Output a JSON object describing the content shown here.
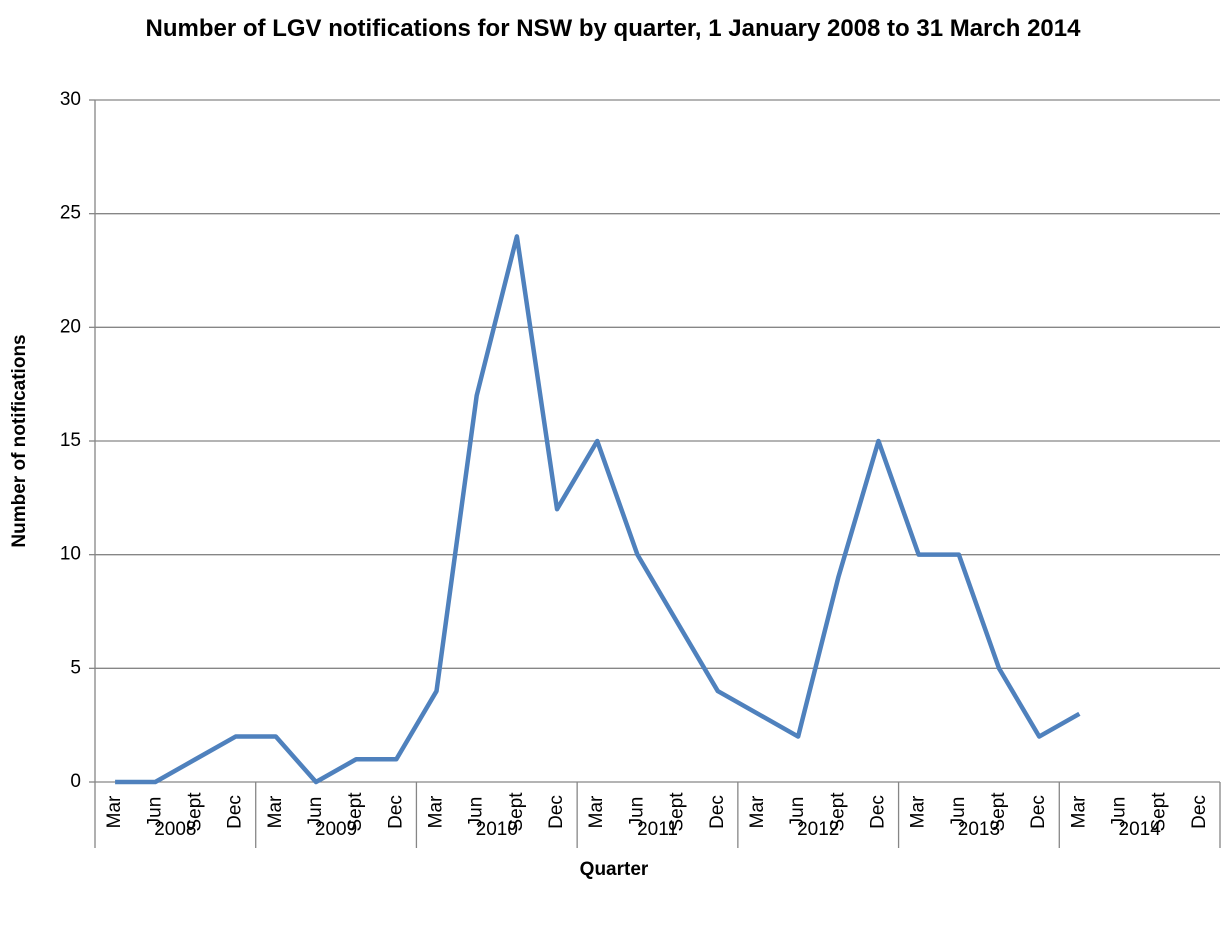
{
  "chart_data": {
    "type": "line",
    "title": "Number of LGV notifications for NSW by quarter, 1 January 2008 to 31 March 2014",
    "x_label": "Quarter",
    "y_label": "Number of notifications",
    "categories": [
      "Mar",
      "Jun",
      "Sept",
      "Dec",
      "Mar",
      "Jun",
      "Sept",
      "Dec",
      "Mar",
      "Jun",
      "Sept",
      "Dec",
      "Mar",
      "Jun",
      "Sept",
      "Dec",
      "Mar",
      "Jun",
      "Sept",
      "Dec",
      "Mar",
      "Jun",
      "Sept",
      "Dec",
      "Mar",
      "Jun",
      "Sept",
      "Dec"
    ],
    "category_groups": [
      "2008",
      "2009",
      "2010",
      "2011",
      "2012",
      "2013",
      "2014"
    ],
    "values": [
      0,
      0,
      1,
      2,
      2,
      0,
      1,
      1,
      4,
      17,
      24,
      12,
      15,
      10,
      7,
      4,
      3,
      2,
      9,
      15,
      10,
      10,
      5,
      2,
      3,
      null,
      null,
      null
    ],
    "color": "#4f81bd",
    "ylim": [
      0,
      30
    ],
    "yticks": [
      0,
      5,
      10,
      15,
      20,
      25,
      30
    ],
    "grid": true
  }
}
